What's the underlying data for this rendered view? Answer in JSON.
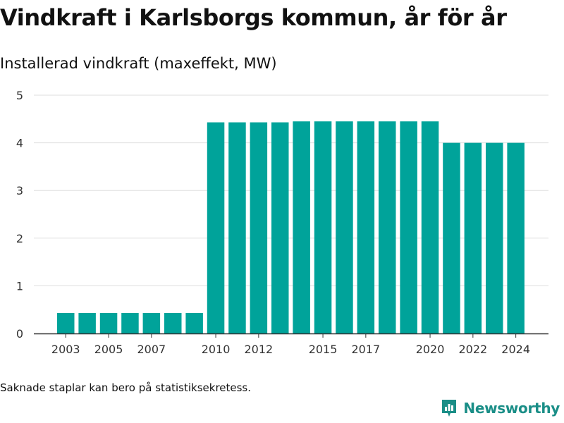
{
  "header": {
    "title": "Vindkraft i Karlsborgs kommun, år för år",
    "subtitle": "Installerad vindkraft (maxeffekt, MW)"
  },
  "footer": {
    "note": "Saknade staplar kan bero på statistiksekretess.",
    "brand": "Newsworthy"
  },
  "colors": {
    "bar": "#00a39a",
    "grid": "#dddddd",
    "axis": "#333333",
    "brand": "#1a8e87"
  },
  "chart_data": {
    "type": "bar",
    "title": "Vindkraft i Karlsborgs kommun, år för år",
    "subtitle": "Installerad vindkraft (maxeffekt, MW)",
    "xlabel": "",
    "ylabel": "",
    "ylim": [
      0,
      5
    ],
    "y_ticks": [
      0,
      1,
      2,
      3,
      4,
      5
    ],
    "x_tick_labels": [
      "2003",
      "2005",
      "2007",
      "2010",
      "2012",
      "2015",
      "2017",
      "2020",
      "2022",
      "2024"
    ],
    "grid": true,
    "legend": "none",
    "categories": [
      "2003",
      "2004",
      "2005",
      "2006",
      "2007",
      "2008",
      "2009",
      "2010",
      "2011",
      "2012",
      "2013",
      "2014",
      "2015",
      "2016",
      "2017",
      "2018",
      "2019",
      "2020",
      "2021",
      "2022",
      "2023",
      "2024"
    ],
    "values": [
      0.43,
      0.43,
      0.43,
      0.43,
      0.43,
      0.43,
      0.43,
      4.43,
      4.43,
      4.43,
      4.43,
      4.45,
      4.45,
      4.45,
      4.45,
      4.45,
      4.45,
      4.45,
      4.0,
      4.0,
      4.0,
      4.0
    ]
  }
}
